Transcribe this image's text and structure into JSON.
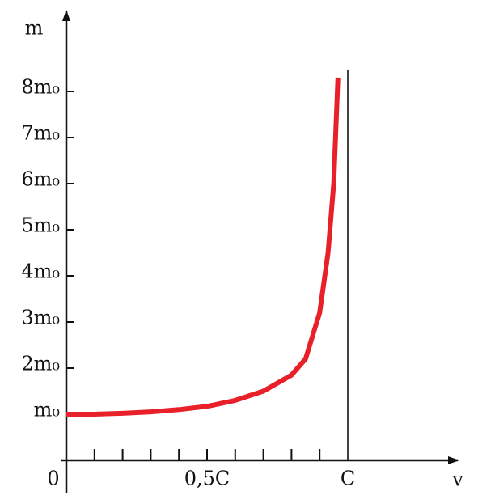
{
  "chart_data": {
    "type": "line",
    "ylabel": "m",
    "xlabel": "v",
    "x": [
      0,
      0.1,
      0.2,
      0.3,
      0.4,
      0.5,
      0.6,
      0.7,
      0.8,
      0.85,
      0.9,
      0.93,
      0.95,
      0.965
    ],
    "values": [
      1.0,
      1.0,
      1.02,
      1.05,
      1.1,
      1.17,
      1.3,
      1.5,
      1.85,
      2.2,
      3.2,
      4.5,
      6.0,
      8.3
    ],
    "color": "#e8202a",
    "xlim": [
      0,
      1.37
    ],
    "ylim": [
      0,
      9.7
    ],
    "xticks": [
      {
        "value": 0,
        "label": "0"
      },
      {
        "value": 0.5,
        "label": "0,5C"
      },
      {
        "value": 1,
        "label": "C"
      }
    ],
    "xminorticks": [
      0.1,
      0.2,
      0.3,
      0.4,
      0.5,
      0.6,
      0.7,
      0.8,
      0.9
    ],
    "yticks": [
      {
        "value": 1,
        "label": "m₀"
      },
      {
        "value": 2,
        "label": "2m₀"
      },
      {
        "value": 3,
        "label": "3m₀"
      },
      {
        "value": 4,
        "label": "4m₀"
      },
      {
        "value": 5,
        "label": "5m₀"
      },
      {
        "value": 6,
        "label": "6m₀"
      },
      {
        "value": 7,
        "label": "7m₀"
      },
      {
        "value": 8,
        "label": "8m₀"
      }
    ],
    "asymptote_x": 1
  }
}
